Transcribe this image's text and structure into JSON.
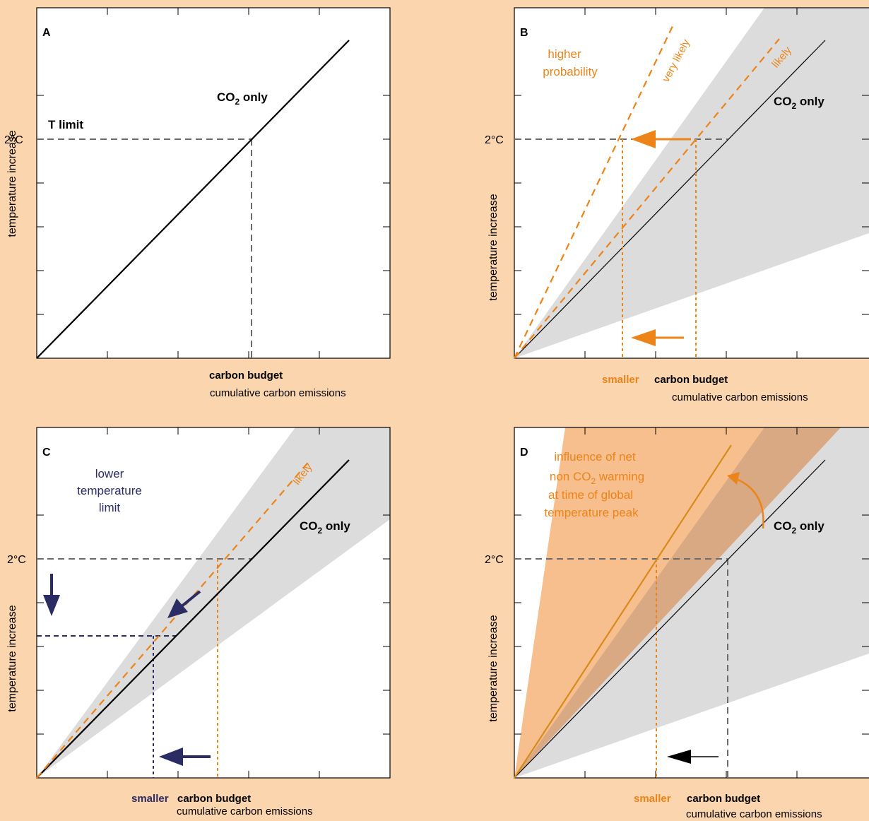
{
  "colors": {
    "background": "#fad5ae",
    "orange": "#ec8419",
    "navy": "#2b2c63",
    "gray_band": "#dcdcdc",
    "orange_band": "#f6bf8d",
    "overlap_band": "#d8a983",
    "dash_gray": "#6b6b6b"
  },
  "panels": {
    "A": {
      "letter": "A",
      "ylabel": "temperature increase",
      "ytick_label": "2°C",
      "t_limit": "T limit",
      "co2_label": "CO",
      "co2_sub": "2",
      "co2_suffix": " only",
      "x_main": "carbon budget",
      "x_sub": "cumulative carbon emissions"
    },
    "B": {
      "letter": "B",
      "ylabel": "temperature increase",
      "ytick_label": "2°C",
      "higher_1": "higher",
      "higher_2": "probability",
      "very_likely": "very likely",
      "likely": "likely",
      "co2_label": "CO",
      "co2_sub": "2",
      "co2_suffix": " only",
      "x_prefix": "smaller",
      "x_main": "carbon budget",
      "x_sub": "cumulative carbon emissions"
    },
    "C": {
      "letter": "C",
      "ylabel": "temperature increase",
      "ytick_label": "2°C",
      "lower_1": "lower",
      "lower_2": "temperature",
      "lower_3": "limit",
      "likely": "likely",
      "co2_label": "CO",
      "co2_sub": "2",
      "co2_suffix": " only",
      "x_prefix": "smaller",
      "x_main": "carbon budget",
      "x_sub": "cumulative carbon emissions"
    },
    "D": {
      "letter": "D",
      "ylabel": "temperature increase",
      "ytick_label": "2°C",
      "infl_1": "influence of net",
      "infl_2a": "non CO",
      "infl_2sub": "2",
      "infl_2b": " warming",
      "infl_3": "at time of global",
      "infl_4": "temperature peak",
      "co2_label": "CO",
      "co2_sub": "2",
      "co2_suffix": " only",
      "x_prefix": "smaller",
      "x_main": "carbon budget",
      "x_sub": "cumulative carbon emissions"
    }
  }
}
